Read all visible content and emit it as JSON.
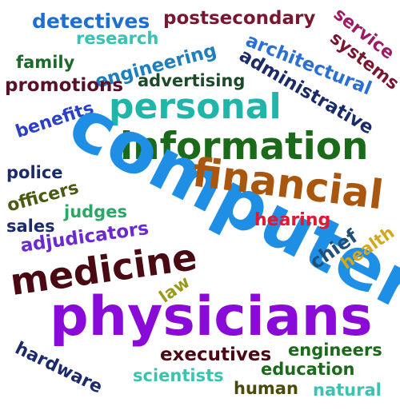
{
  "words": [
    {
      "text": "detectives",
      "color": "#1f6fd0"
    },
    {
      "text": "postsecondary",
      "color": "#7a1630"
    },
    {
      "text": "service",
      "color": "#9e1b64"
    },
    {
      "text": "systems",
      "color": "#7a1630"
    },
    {
      "text": "research",
      "color": "#37c3b0"
    },
    {
      "text": "architectural",
      "color": "#2a6fd6"
    },
    {
      "text": "family",
      "color": "#1a6a2a"
    },
    {
      "text": "engineering",
      "color": "#1f7fbe"
    },
    {
      "text": "administrative",
      "color": "#1b2a6b"
    },
    {
      "text": "promotions",
      "color": "#5a1028"
    },
    {
      "text": "advertising",
      "color": "#1a4a2a"
    },
    {
      "text": "personal",
      "color": "#1fb5a8"
    },
    {
      "text": "benefits",
      "color": "#2a40c8"
    },
    {
      "text": "information",
      "color": "#1a6a1a"
    },
    {
      "text": "computer",
      "color": "#1f8fe6"
    },
    {
      "text": "financial",
      "color": "#a9570e"
    },
    {
      "text": "police",
      "color": "#1b2a6b"
    },
    {
      "text": "officers",
      "color": "#4a5a10"
    },
    {
      "text": "judges",
      "color": "#2aa868"
    },
    {
      "text": "sales",
      "color": "#1b2a6b"
    },
    {
      "text": "hearing",
      "color": "#e01a34"
    },
    {
      "text": "adjudicators",
      "color": "#6a2ad0"
    },
    {
      "text": "chief",
      "color": "#1f4f7a"
    },
    {
      "text": "health",
      "color": "#d4a81a"
    },
    {
      "text": "medicine",
      "color": "#4a0a14"
    },
    {
      "text": "law",
      "color": "#9a9a1a"
    },
    {
      "text": "physicians",
      "color": "#8a0ad8"
    },
    {
      "text": "executives",
      "color": "#4a0a14"
    },
    {
      "text": "engineers",
      "color": "#1a6a1a"
    },
    {
      "text": "hardware",
      "color": "#1b2a6b"
    },
    {
      "text": "education",
      "color": "#1a6a1a"
    },
    {
      "text": "scientists",
      "color": "#3ac3b0"
    },
    {
      "text": "human",
      "color": "#4a4a0a"
    },
    {
      "text": "natural",
      "color": "#3ac3b0"
    }
  ]
}
